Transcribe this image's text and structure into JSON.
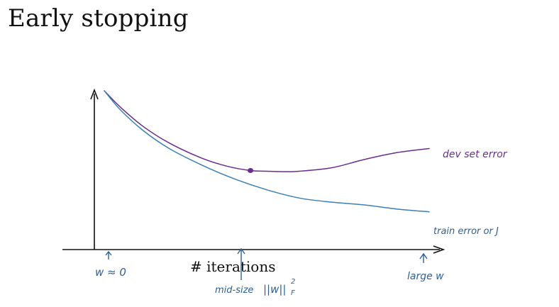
{
  "slide": {
    "title": "Early stopping"
  },
  "colors": {
    "dev": "#6a2d8f",
    "train": "#3b7fb6",
    "axes": "#111111",
    "ink": "#2d5f95"
  },
  "chart_data": {
    "type": "line",
    "title": "Early stopping",
    "xlabel": "# iterations",
    "ylabel": "",
    "xlim": [
      0,
      100
    ],
    "ylim": [
      0,
      100
    ],
    "grid": false,
    "series": [
      {
        "name": "dev set error",
        "x": [
          0,
          5,
          12,
          20,
          30,
          38,
          45,
          50,
          56,
          60,
          70,
          80,
          90,
          100
        ],
        "values": [
          100,
          88,
          74,
          62,
          51,
          45,
          42,
          41.5,
          41.2,
          41.5,
          44,
          50,
          55,
          58
        ],
        "marker_at": 45
      },
      {
        "name": "train error or J",
        "x": [
          0,
          5,
          12,
          20,
          30,
          40,
          50,
          60,
          70,
          80,
          90,
          100
        ],
        "values": [
          100,
          86,
          71,
          58,
          46,
          36,
          28,
          22,
          19,
          17,
          14,
          12
        ]
      }
    ]
  },
  "annotations": {
    "left_tick": "w ≈ 0",
    "mid_tick": "mid-size",
    "mid_norm": "||w||",
    "mid_norm_sup": "2",
    "mid_norm_sub": "F",
    "right_tick": "large w",
    "dev_label": "dev set error",
    "train_label": "train error or J"
  }
}
